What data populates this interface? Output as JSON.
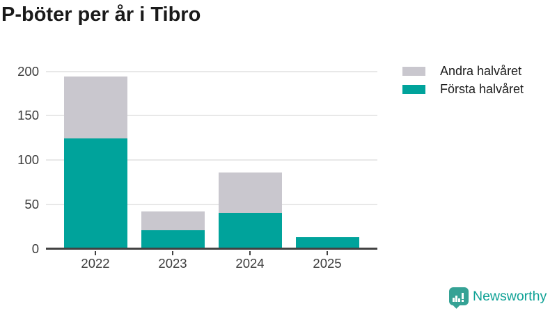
{
  "title": "P-böter per år i Tibro",
  "legend": {
    "items": [
      {
        "label": "Andra halvåret",
        "color": "#c9c7ce"
      },
      {
        "label": "Första halvåret",
        "color": "#00a39b"
      }
    ]
  },
  "chart_data": {
    "type": "bar",
    "stacked": true,
    "title": "P-böter per år i Tibro",
    "categories": [
      "2022",
      "2023",
      "2024",
      "2025"
    ],
    "series": [
      {
        "name": "Första halvåret",
        "color": "#00a39b",
        "values": [
          123,
          20,
          39,
          12
        ]
      },
      {
        "name": "Andra halvåret",
        "color": "#c9c7ce",
        "values": [
          70,
          21,
          46,
          0
        ]
      }
    ],
    "xlabel": "",
    "ylabel": "",
    "ylim": [
      0,
      200
    ],
    "yticks": [
      0,
      50,
      100,
      150,
      200
    ],
    "grid": true,
    "legend_position": "top-right",
    "colors": {
      "grid": "#e8e8e8",
      "axis": "#424242",
      "tick_label": "#3c3c3c"
    }
  },
  "branding": {
    "logo_text": "Newsworthy",
    "logo_text_color": "#0ea195",
    "logo_icon_color": "#35a295",
    "logo_icon": "newsworthy-bar-chart-bubble-icon"
  }
}
